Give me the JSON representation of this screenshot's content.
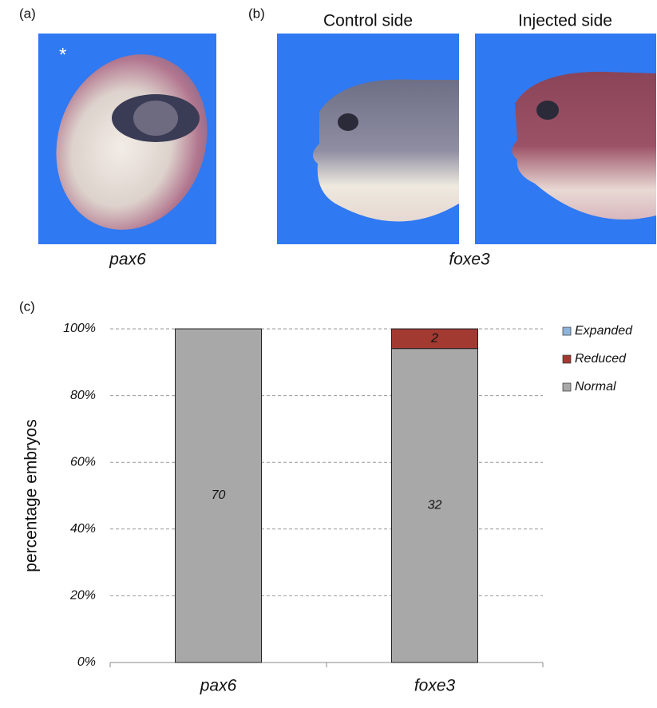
{
  "panels": {
    "a_label": "(a)",
    "b_label": "(b)",
    "c_label": "(c)",
    "asterisk": "*",
    "control_title": "Control side",
    "injected_title": "Injected side",
    "a_gene": "pax6",
    "b_gene": "foxe3"
  },
  "chart_data": {
    "type": "stacked_bar",
    "ylabel": "percentage embryos",
    "categories": [
      "pax6",
      "foxe3"
    ],
    "series": [
      {
        "name": "Expanded",
        "color": "#8fb4dc",
        "values": [
          0,
          0
        ]
      },
      {
        "name": "Reduced",
        "color": "#a23a32",
        "values": [
          0,
          5.9
        ],
        "counts": [
          null,
          2
        ]
      },
      {
        "name": "Normal",
        "color": "#a8a8a8",
        "values": [
          100,
          94.1
        ],
        "counts": [
          70,
          32
        ]
      }
    ],
    "ylim": [
      0,
      100
    ],
    "yticks": [
      {
        "value": 0,
        "label": "0%"
      },
      {
        "value": 20,
        "label": "20%"
      },
      {
        "value": 40,
        "label": "40%"
      },
      {
        "value": 60,
        "label": "60%"
      },
      {
        "value": 80,
        "label": "80%"
      },
      {
        "value": 100,
        "label": "100%"
      }
    ],
    "grid": true,
    "legend": "top-right"
  }
}
